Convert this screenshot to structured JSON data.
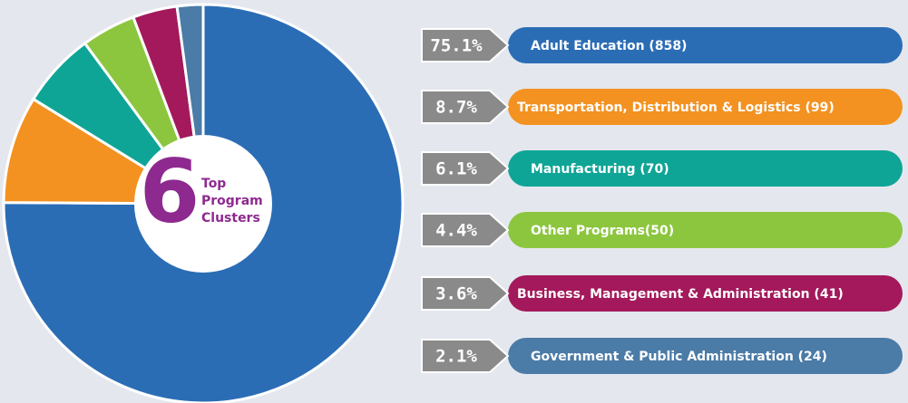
{
  "chart_data": {
    "type": "pie",
    "categories": [
      "Adult Education (858)",
      "Transportation, Distribution & Logistics (99)",
      "Manufacturing (70)",
      "Other Programs(50)",
      "Business, Management & Administration (41)",
      "Government & Public Administration (24)"
    ],
    "values": [
      75.1,
      8.7,
      6.1,
      4.4,
      3.6,
      2.1
    ],
    "value_labels": [
      "75.1%",
      "8.7%",
      "6.1%",
      "4.4%",
      "3.6%",
      "2.1%"
    ],
    "colors": [
      "#2b6db5",
      "#f39221",
      "#0fa596",
      "#8cc63f",
      "#a3195b",
      "#4b7ba7"
    ],
    "center": {
      "number": 6,
      "lines": [
        "Top",
        "Program",
        "Clusters"
      ]
    }
  }
}
